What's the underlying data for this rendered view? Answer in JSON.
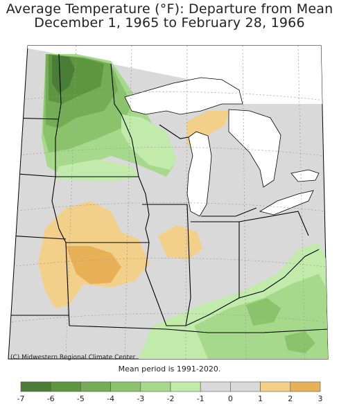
{
  "title_line1": "Average Temperature (°F): Departure from Mean",
  "title_line2": "December 1, 1965 to February 28, 1966",
  "credit": "(C) Midwestern Regional Climate Center",
  "mean_note": "Mean period is 1991-2020.",
  "legend": {
    "bins": [
      {
        "color": "#4a7e38"
      },
      {
        "color": "#5e963f"
      },
      {
        "color": "#74ad56"
      },
      {
        "color": "#8bc36c"
      },
      {
        "color": "#a7d98c"
      },
      {
        "color": "#c2ebab"
      },
      {
        "color": "#d9d9d9"
      },
      {
        "color": "#d9d9d9"
      },
      {
        "color": "#f2d08a"
      },
      {
        "color": "#e8b057"
      }
    ],
    "ticks": [
      "-7",
      "-6",
      "-5",
      "-4",
      "-3",
      "-2",
      "-1",
      "0",
      "1",
      "2",
      "3"
    ]
  },
  "colors": {
    "lake": "#ffffff",
    "neutral": "#d9d9d9",
    "border": "#000000",
    "grid": "#9a9a9a"
  }
}
